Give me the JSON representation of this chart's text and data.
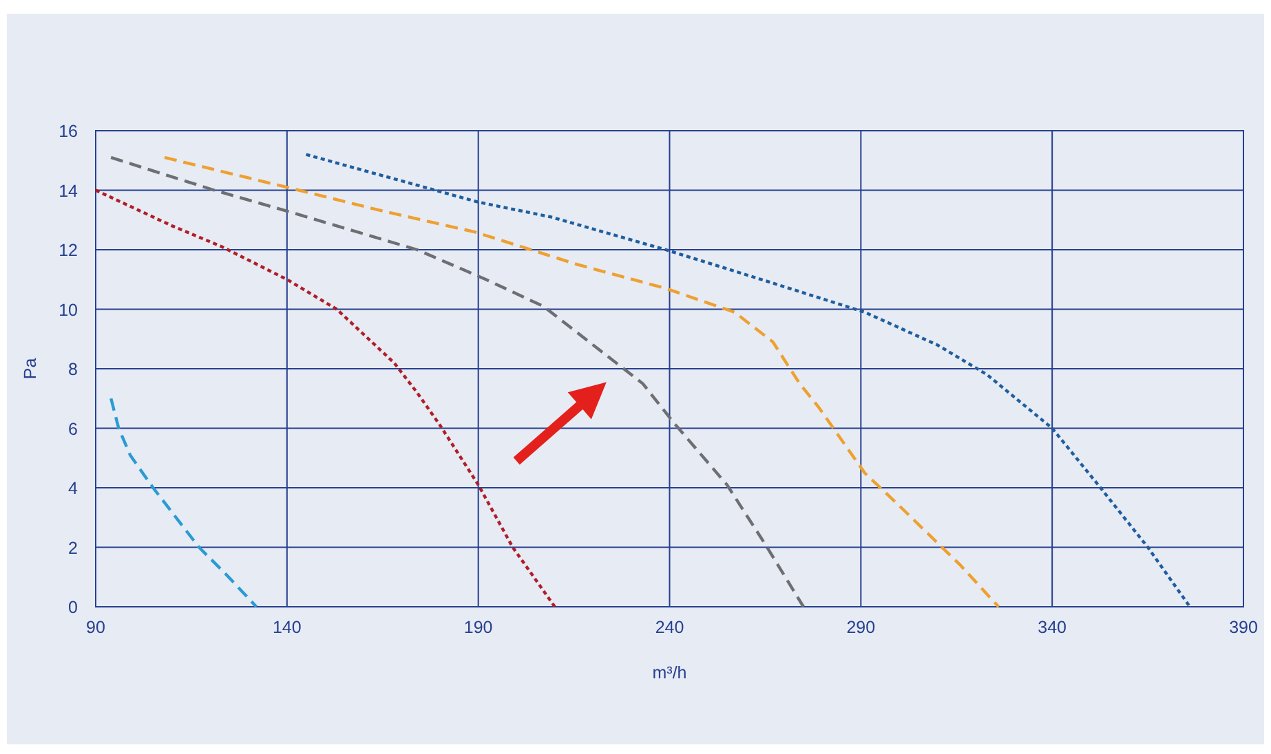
{
  "chart_data": {
    "type": "line",
    "xlabel": "m³/h",
    "ylabel": "Pa",
    "xlim": [
      90,
      390
    ],
    "ylim": [
      0,
      16
    ],
    "xticks": [
      90,
      140,
      190,
      240,
      290,
      340,
      390
    ],
    "yticks": [
      0,
      2,
      4,
      6,
      8,
      10,
      12,
      14,
      16
    ],
    "grid": true,
    "series": [
      {
        "color": "#2a9bd4",
        "line_style": "dashed",
        "x": [
          94,
          96,
          99,
          105,
          111,
          117,
          124,
          132
        ],
        "values": [
          7.0,
          6.0,
          5.1,
          4.0,
          3.0,
          2.0,
          1.1,
          0
        ]
      },
      {
        "color": "#b01e28",
        "line_style": "dotted",
        "x": [
          90,
          110,
          123,
          140,
          153,
          168,
          174,
          180,
          190,
          199,
          210
        ],
        "values": [
          14.0,
          12.8,
          12.1,
          11.0,
          10.0,
          8.2,
          7.2,
          6.1,
          4.1,
          2.0,
          0
        ]
      },
      {
        "color": "#6e6f73",
        "line_style": "dashed",
        "x": [
          94,
          121,
          140,
          174,
          192,
          207,
          216,
          227,
          233,
          241,
          255,
          265,
          275
        ],
        "values": [
          15.1,
          14.0,
          13.3,
          12.0,
          11.0,
          10.1,
          9.2,
          8.1,
          7.5,
          6.2,
          4.1,
          2.1,
          0
        ]
      },
      {
        "color": "#eea030",
        "line_style": "dashed",
        "x": [
          108,
          140,
          165,
          189,
          216,
          239,
          257,
          267,
          274,
          279,
          291,
          300,
          308,
          316,
          326
        ],
        "values": [
          15.1,
          14.1,
          13.3,
          12.6,
          11.5,
          10.7,
          9.9,
          8.9,
          7.5,
          6.7,
          4.5,
          3.4,
          2.4,
          1.4,
          0
        ]
      },
      {
        "color": "#1f5e9e",
        "line_style": "dotted",
        "x": [
          145,
          190,
          209,
          239,
          264,
          291,
          310,
          323,
          340,
          352,
          365,
          376
        ],
        "values": [
          15.2,
          13.6,
          13.1,
          12.0,
          11.0,
          9.9,
          8.8,
          7.8,
          6.0,
          4.1,
          2.0,
          0
        ]
      }
    ]
  }
}
